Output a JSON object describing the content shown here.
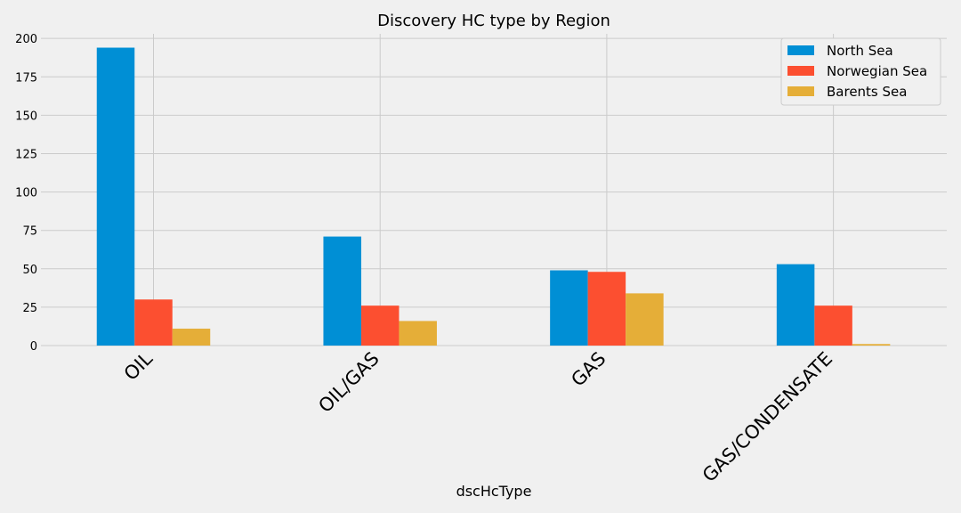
{
  "chart_data": {
    "type": "bar",
    "title": "Discovery HC type by Region",
    "xlabel": "dscHcType",
    "ylabel": "",
    "categories": [
      "OIL",
      "OIL/GAS",
      "GAS",
      "GAS/CONDENSATE"
    ],
    "series": [
      {
        "name": "North Sea",
        "color": "#008fd5",
        "values": [
          194,
          71,
          49,
          53
        ]
      },
      {
        "name": "Norwegian Sea",
        "color": "#fc4f30",
        "values": [
          30,
          26,
          48,
          26
        ]
      },
      {
        "name": "Barents Sea",
        "color": "#e5ae38",
        "values": [
          11,
          16,
          34,
          1
        ]
      }
    ],
    "ylim": [
      0,
      203
    ],
    "yticks": [
      0,
      25,
      50,
      75,
      100,
      125,
      150,
      175,
      200
    ],
    "grid": true,
    "legend_position": "top-right"
  }
}
